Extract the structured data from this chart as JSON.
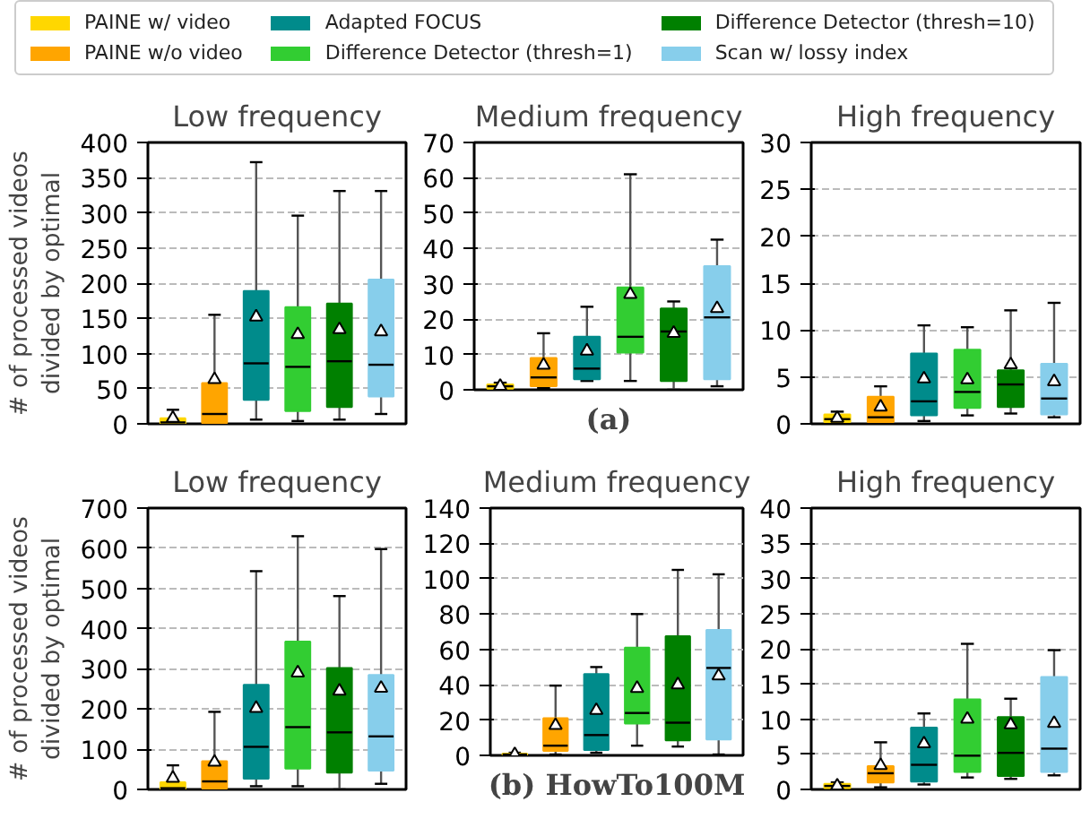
{
  "chart_data": [
    {
      "type": "box",
      "title": "Low frequency",
      "ylabel": "# of processed videos\ndivided by optimal",
      "categories": [
        null
      ],
      "ylim": [
        0,
        400
      ],
      "yticks": [
        0,
        50,
        100,
        150,
        200,
        250,
        300,
        350,
        400
      ],
      "grid": "y",
      "legend": "top",
      "series": [
        {
          "name": "PAINE w/ video",
          "color": "#ffd700",
          "boxes": [
            {
              "low": 0,
              "q1": 0,
              "median": 2,
              "q3": 8,
              "high": 20,
              "mean": 8
            }
          ]
        },
        {
          "name": "PAINE w/o video",
          "color": "#ffa500",
          "boxes": [
            {
              "low": 1,
              "q1": 1,
              "median": 14,
              "q3": 58,
              "high": 155,
              "mean": 63
            }
          ]
        },
        {
          "name": "Adapted FOCUS",
          "color": "#008b8b",
          "boxes": [
            {
              "low": 6,
              "q1": 34,
              "median": 86,
              "q3": 189,
              "high": 372,
              "mean": 152
            }
          ]
        },
        {
          "name": "Difference Detector (thresh=1)",
          "color": "#32cd32",
          "boxes": [
            {
              "low": 4,
              "q1": 18,
              "median": 81,
              "q3": 166,
              "high": 296,
              "mean": 127
            }
          ]
        },
        {
          "name": "Difference Detector (thresh=10)",
          "color": "#008000",
          "boxes": [
            {
              "low": 6,
              "q1": 24,
              "median": 89,
              "q3": 171,
              "high": 331,
              "mean": 134
            }
          ]
        },
        {
          "name": "Scan w/ lossy index",
          "color": "#87ceeb",
          "boxes": [
            {
              "low": 14,
              "q1": 39,
              "median": 84,
              "q3": 205,
              "high": 331,
              "mean": 131
            }
          ]
        }
      ]
    },
    {
      "type": "box",
      "title": "Medium frequency",
      "categories": [
        null
      ],
      "ylim": [
        0,
        70
      ],
      "yticks": [
        0,
        10,
        20,
        30,
        40,
        50,
        60,
        70
      ],
      "grid": "y",
      "annotations": [
        "(a)"
      ],
      "series": [
        {
          "color": "#ffd700",
          "boxes": [
            {
              "low": 0,
              "q1": 0.3,
              "median": 1,
              "q3": 1.5,
              "high": 2,
              "mean": 1
            }
          ]
        },
        {
          "color": "#ffa500",
          "boxes": [
            {
              "low": 0.5,
              "q1": 1,
              "median": 3.5,
              "q3": 9,
              "high": 16,
              "mean": 7
            }
          ]
        },
        {
          "color": "#008b8b",
          "boxes": [
            {
              "low": 2.5,
              "q1": 3,
              "median": 6,
              "q3": 15,
              "high": 23.5,
              "mean": 11
            }
          ]
        },
        {
          "color": "#32cd32",
          "boxes": [
            {
              "low": 2.5,
              "q1": 10.5,
              "median": 15,
              "q3": 29,
              "high": 61,
              "mean": 27
            }
          ]
        },
        {
          "color": "#008000",
          "boxes": [
            {
              "low": 0,
              "q1": 2.5,
              "median": 16.5,
              "q3": 23,
              "high": 25,
              "mean": 16
            }
          ]
        },
        {
          "color": "#87ceeb",
          "boxes": [
            {
              "low": 1,
              "q1": 3,
              "median": 20.5,
              "q3": 35,
              "high": 42.5,
              "mean": 23
            }
          ]
        }
      ]
    },
    {
      "type": "box",
      "title": "High frequency",
      "categories": [
        null
      ],
      "ylim": [
        0,
        30
      ],
      "yticks": [
        0,
        5,
        10,
        15,
        20,
        25,
        30
      ],
      "grid": "y",
      "series": [
        {
          "color": "#ffd700",
          "boxes": [
            {
              "low": 0.1,
              "q1": 0.2,
              "median": 0.5,
              "q3": 1,
              "high": 1.3,
              "mean": 0.6
            }
          ]
        },
        {
          "color": "#ffa500",
          "boxes": [
            {
              "low": 0.1,
              "q1": 0.2,
              "median": 0.7,
              "q3": 2.9,
              "high": 4,
              "mean": 1.8
            }
          ]
        },
        {
          "color": "#008b8b",
          "boxes": [
            {
              "low": 0.3,
              "q1": 0.9,
              "median": 2.4,
              "q3": 7.5,
              "high": 10.5,
              "mean": 4.8
            }
          ]
        },
        {
          "color": "#32cd32",
          "boxes": [
            {
              "low": 0.9,
              "q1": 1.7,
              "median": 3.4,
              "q3": 7.9,
              "high": 10.3,
              "mean": 4.7
            }
          ]
        },
        {
          "color": "#008000",
          "boxes": [
            {
              "low": 1.1,
              "q1": 1.8,
              "median": 4.2,
              "q3": 5.7,
              "high": 12.1,
              "mean": 6.3
            }
          ]
        },
        {
          "color": "#87ceeb",
          "boxes": [
            {
              "low": 0.7,
              "q1": 1,
              "median": 2.7,
              "q3": 6.4,
              "high": 12.9,
              "mean": 4.5
            }
          ]
        }
      ]
    },
    {
      "type": "box",
      "title": "Low frequency",
      "ylabel": "# of processed videos\ndivided by optimal",
      "categories": [
        null
      ],
      "ylim": [
        0,
        700
      ],
      "yticks": [
        0,
        100,
        200,
        300,
        400,
        500,
        600,
        700
      ],
      "grid": "y",
      "series": [
        {
          "color": "#ffd700",
          "boxes": [
            {
              "low": 0,
              "q1": 0,
              "median": 3,
              "q3": 18,
              "high": 60,
              "mean": 28
            }
          ]
        },
        {
          "color": "#ffa500",
          "boxes": [
            {
              "low": 0,
              "q1": 2,
              "median": 20,
              "q3": 70,
              "high": 193,
              "mean": 68
            }
          ]
        },
        {
          "color": "#008b8b",
          "boxes": [
            {
              "low": 8,
              "q1": 27,
              "median": 106,
              "q3": 260,
              "high": 543,
              "mean": 202
            }
          ]
        },
        {
          "color": "#32cd32",
          "boxes": [
            {
              "low": 8,
              "q1": 52,
              "median": 155,
              "q3": 368,
              "high": 630,
              "mean": 290
            }
          ]
        },
        {
          "color": "#008000",
          "boxes": [
            {
              "low": 0,
              "q1": 42,
              "median": 142,
              "q3": 302,
              "high": 481,
              "mean": 245
            }
          ]
        },
        {
          "color": "#87ceeb",
          "boxes": [
            {
              "low": 14,
              "q1": 47,
              "median": 132,
              "q3": 285,
              "high": 598,
              "mean": 252
            }
          ]
        }
      ]
    },
    {
      "type": "box",
      "title": "Medium frequency",
      "categories": [
        null
      ],
      "ylim": [
        0,
        140
      ],
      "yticks": [
        0,
        20,
        40,
        60,
        80,
        100,
        120,
        140
      ],
      "grid": "y",
      "annotations": [
        "(b) HowTo100M"
      ],
      "series": [
        {
          "color": "#ffd700",
          "boxes": [
            {
              "low": 0,
              "q1": 0,
              "median": 0.5,
              "q3": 1,
              "high": 1.5,
              "mean": 0.5
            }
          ]
        },
        {
          "color": "#ffa500",
          "boxes": [
            {
              "low": 0.5,
              "q1": 2.5,
              "median": 5.5,
              "q3": 21,
              "high": 39.5,
              "mean": 17
            }
          ]
        },
        {
          "color": "#008b8b",
          "boxes": [
            {
              "low": 1.5,
              "q1": 3,
              "median": 11.5,
              "q3": 46,
              "high": 50,
              "mean": 25.5
            }
          ]
        },
        {
          "color": "#32cd32",
          "boxes": [
            {
              "low": 5.5,
              "q1": 18,
              "median": 24,
              "q3": 61,
              "high": 80,
              "mean": 38
            }
          ]
        },
        {
          "color": "#008000",
          "boxes": [
            {
              "low": 5,
              "q1": 8.5,
              "median": 18.5,
              "q3": 67.5,
              "high": 105,
              "mean": 40
            }
          ]
        },
        {
          "color": "#87ceeb",
          "boxes": [
            {
              "low": 0.5,
              "q1": 9,
              "median": 49.5,
              "q3": 71,
              "high": 102.5,
              "mean": 45
            }
          ]
        }
      ]
    },
    {
      "type": "box",
      "title": "High frequency",
      "categories": [
        null
      ],
      "ylim": [
        0,
        40
      ],
      "yticks": [
        0,
        5,
        10,
        15,
        20,
        25,
        30,
        35,
        40
      ],
      "grid": "y",
      "series": [
        {
          "color": "#ffd700",
          "boxes": [
            {
              "low": 0,
              "q1": 0.2,
              "median": 0.5,
              "q3": 0.8,
              "high": 1,
              "mean": 0.5
            }
          ]
        },
        {
          "color": "#ffa500",
          "boxes": [
            {
              "low": 0.3,
              "q1": 1,
              "median": 2.3,
              "q3": 3.3,
              "high": 6.7,
              "mean": 3.4
            }
          ]
        },
        {
          "color": "#008b8b",
          "boxes": [
            {
              "low": 0.7,
              "q1": 1.1,
              "median": 3.5,
              "q3": 8.8,
              "high": 10.8,
              "mean": 6.5
            }
          ]
        },
        {
          "color": "#32cd32",
          "boxes": [
            {
              "low": 1.7,
              "q1": 2.5,
              "median": 4.8,
              "q3": 12.8,
              "high": 20.7,
              "mean": 10
            }
          ]
        },
        {
          "color": "#008000",
          "boxes": [
            {
              "low": 1.5,
              "q1": 1.9,
              "median": 5.2,
              "q3": 10.3,
              "high": 12.9,
              "mean": 9.2
            }
          ]
        },
        {
          "color": "#87ceeb",
          "boxes": [
            {
              "low": 2,
              "q1": 2.5,
              "median": 5.8,
              "q3": 16,
              "high": 19.8,
              "mean": 9.4
            }
          ]
        }
      ]
    }
  ]
}
